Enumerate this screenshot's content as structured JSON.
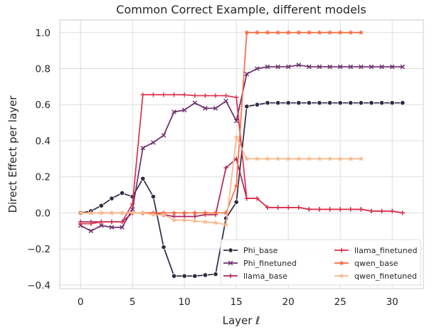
{
  "chart_data": {
    "type": "line",
    "title": "Common Correct Example, different models",
    "xlabel": "Layer ℓ",
    "ylabel": "Direct Effect per layer",
    "xlim": [
      -2,
      33
    ],
    "ylim": [
      -0.42,
      1.07
    ],
    "xticks": [
      0,
      5,
      10,
      15,
      20,
      25,
      30
    ],
    "yticks": [
      -0.4,
      -0.2,
      0.0,
      0.2,
      0.4,
      0.6,
      0.8,
      1.0
    ],
    "xtick_labels": [
      "0",
      "5",
      "10",
      "15",
      "20",
      "25",
      "30"
    ],
    "ytick_labels": [
      "−0.4",
      "−0.2",
      "0.0",
      "0.2",
      "0.4",
      "0.6",
      "0.8",
      "1.0"
    ],
    "grid": true,
    "legend_placement": "lower-right",
    "series": [
      {
        "name": "Phi_base",
        "color": "#2e2a42",
        "marker": "circle",
        "x": [
          0,
          1,
          2,
          3,
          4,
          5,
          6,
          7,
          8,
          9,
          10,
          11,
          12,
          13,
          14,
          15,
          16,
          17,
          18,
          19,
          20,
          21,
          22,
          23,
          24,
          25,
          26,
          27,
          28,
          29,
          30,
          31
        ],
        "values": [
          0.0,
          0.01,
          0.04,
          0.08,
          0.11,
          0.09,
          0.19,
          0.09,
          -0.19,
          -0.35,
          -0.35,
          -0.35,
          -0.345,
          -0.34,
          -0.03,
          0.06,
          0.59,
          0.6,
          0.61,
          0.61,
          0.61,
          0.61,
          0.61,
          0.61,
          0.61,
          0.61,
          0.61,
          0.61,
          0.61,
          0.61,
          0.61,
          0.61
        ]
      },
      {
        "name": "Phi_finetuned",
        "color": "#6b2d6b",
        "marker": "x",
        "x": [
          0,
          1,
          2,
          3,
          4,
          5,
          6,
          7,
          8,
          9,
          10,
          11,
          12,
          13,
          14,
          15,
          16,
          17,
          18,
          19,
          20,
          21,
          22,
          23,
          24,
          25,
          26,
          27,
          28,
          29,
          30,
          31
        ],
        "values": [
          -0.07,
          -0.1,
          -0.07,
          -0.08,
          -0.08,
          0.02,
          0.36,
          0.39,
          0.43,
          0.56,
          0.57,
          0.61,
          0.58,
          0.58,
          0.62,
          0.51,
          0.77,
          0.8,
          0.81,
          0.81,
          0.81,
          0.82,
          0.81,
          0.81,
          0.81,
          0.81,
          0.81,
          0.81,
          0.81,
          0.81,
          0.81,
          0.81
        ]
      },
      {
        "name": "llama_base",
        "color": "#b0245a",
        "marker": "plus",
        "x": [
          0,
          1,
          2,
          3,
          4,
          5,
          6,
          7,
          8,
          9,
          10,
          11,
          12,
          13,
          14,
          15,
          16,
          17,
          18,
          19,
          20,
          21,
          22,
          23,
          24,
          25,
          26,
          27,
          28,
          29,
          30,
          31
        ],
        "values": [
          -0.05,
          -0.05,
          -0.05,
          -0.05,
          -0.05,
          0.0,
          0.0,
          0.0,
          -0.01,
          -0.02,
          -0.02,
          -0.02,
          -0.01,
          -0.01,
          0.25,
          0.3,
          0.08,
          0.08,
          0.03,
          0.03,
          0.03,
          0.03,
          0.02,
          0.02,
          0.02,
          0.02,
          0.02,
          0.02,
          0.01,
          0.01,
          0.01,
          0.0
        ]
      },
      {
        "name": "llama_finetuned",
        "color": "#d9314a",
        "marker": "plus",
        "x": [
          0,
          1,
          2,
          3,
          4,
          5,
          6,
          7,
          8,
          9,
          10,
          11,
          12,
          13,
          14,
          15,
          16,
          17,
          18,
          19,
          20,
          21,
          22,
          23,
          24,
          25,
          26,
          27,
          28,
          29,
          30,
          31
        ],
        "values": [
          -0.06,
          -0.06,
          -0.05,
          -0.05,
          -0.05,
          0.05,
          0.655,
          0.655,
          0.655,
          0.655,
          0.655,
          0.65,
          0.65,
          0.65,
          0.65,
          0.64,
          0.08,
          0.08,
          0.03,
          0.03,
          0.03,
          0.03,
          0.02,
          0.02,
          0.02,
          0.02,
          0.02,
          0.02,
          0.01,
          0.01,
          0.01,
          0.0
        ]
      },
      {
        "name": "qwen_base",
        "color": "#f36e44",
        "marker": "star",
        "x": [
          0,
          1,
          2,
          3,
          4,
          5,
          6,
          7,
          8,
          9,
          10,
          11,
          12,
          13,
          14,
          15,
          16,
          17,
          18,
          19,
          20,
          21,
          22,
          23,
          24,
          25,
          26,
          27
        ],
        "values": [
          0.0,
          0.0,
          0.0,
          0.0,
          0.0,
          0.0,
          0.0,
          0.0,
          0.0,
          0.0,
          0.0,
          0.0,
          0.0,
          0.0,
          0.0,
          0.15,
          1.0,
          1.0,
          1.0,
          1.0,
          1.0,
          1.0,
          1.0,
          1.0,
          1.0,
          1.0,
          1.0,
          1.0
        ]
      },
      {
        "name": "qwen_finetuned",
        "color": "#f9b98b",
        "marker": "star",
        "x": [
          0,
          1,
          2,
          3,
          4,
          5,
          6,
          7,
          8,
          9,
          10,
          11,
          12,
          13,
          14,
          15,
          16,
          17,
          18,
          19,
          20,
          21,
          22,
          23,
          24,
          25,
          26,
          27
        ],
        "values": [
          0.0,
          0.0,
          0.0,
          0.0,
          0.0,
          0.0,
          0.0,
          -0.01,
          -0.01,
          -0.04,
          -0.04,
          -0.045,
          -0.05,
          -0.055,
          -0.065,
          0.42,
          0.3,
          0.3,
          0.3,
          0.3,
          0.3,
          0.3,
          0.3,
          0.3,
          0.3,
          0.3,
          0.3,
          0.3
        ]
      }
    ]
  }
}
